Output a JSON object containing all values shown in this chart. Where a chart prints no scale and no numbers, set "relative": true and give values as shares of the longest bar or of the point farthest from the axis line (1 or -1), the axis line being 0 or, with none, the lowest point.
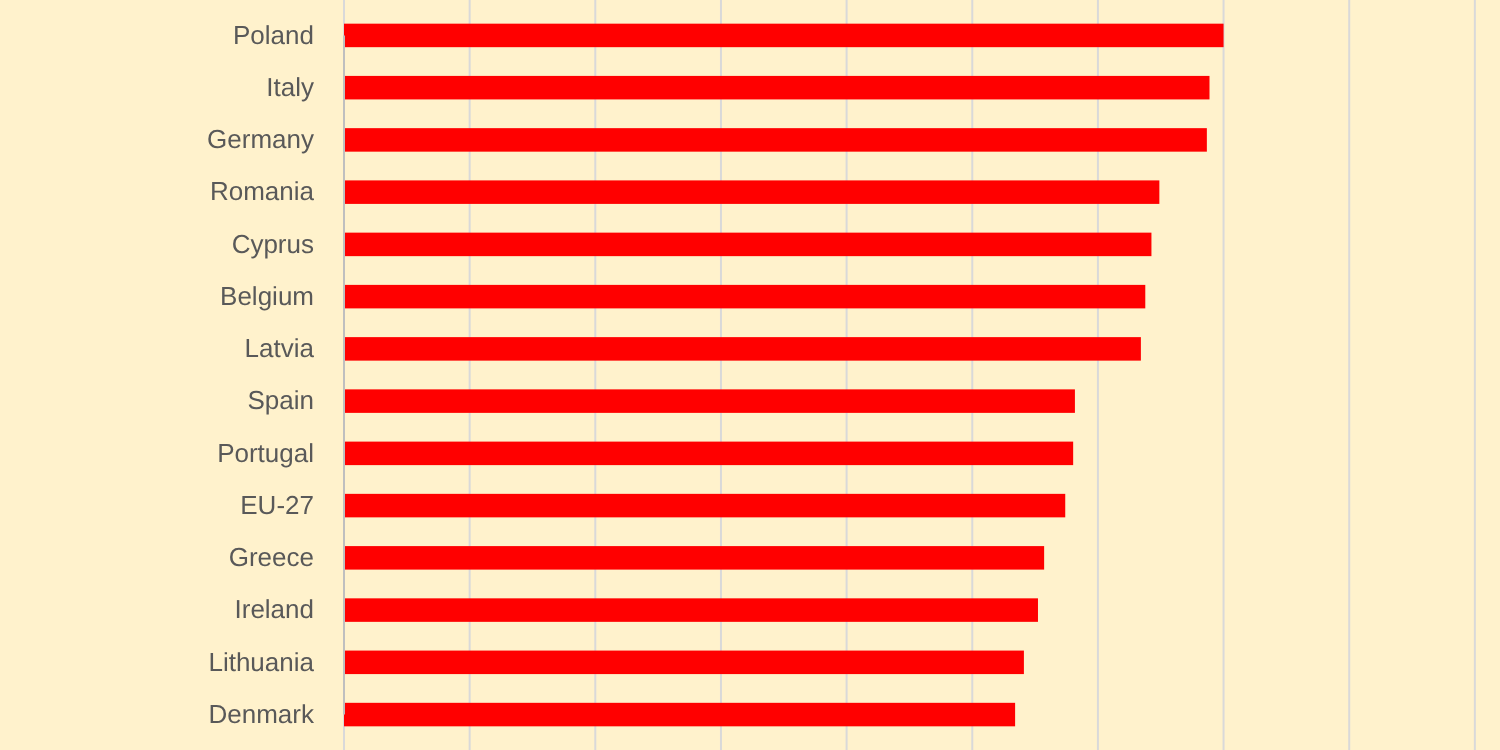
{
  "chart_data": {
    "type": "bar",
    "orientation": "horizontal",
    "relative": true,
    "grid": "x",
    "categories": [
      "Poland",
      "Italy",
      "Germany",
      "Romania",
      "Cyprus",
      "Belgium",
      "Latvia",
      "Spain",
      "Portugal",
      "EU-27",
      "Greece",
      "Ireland",
      "Lithuania",
      "Denmark"
    ],
    "values": [
      1,
      0.984,
      0.981,
      0.927,
      0.918,
      0.911,
      0.906,
      0.831,
      0.829,
      0.82,
      0.796,
      0.789,
      0.773,
      0.763
    ],
    "color": "#ff0000"
  }
}
